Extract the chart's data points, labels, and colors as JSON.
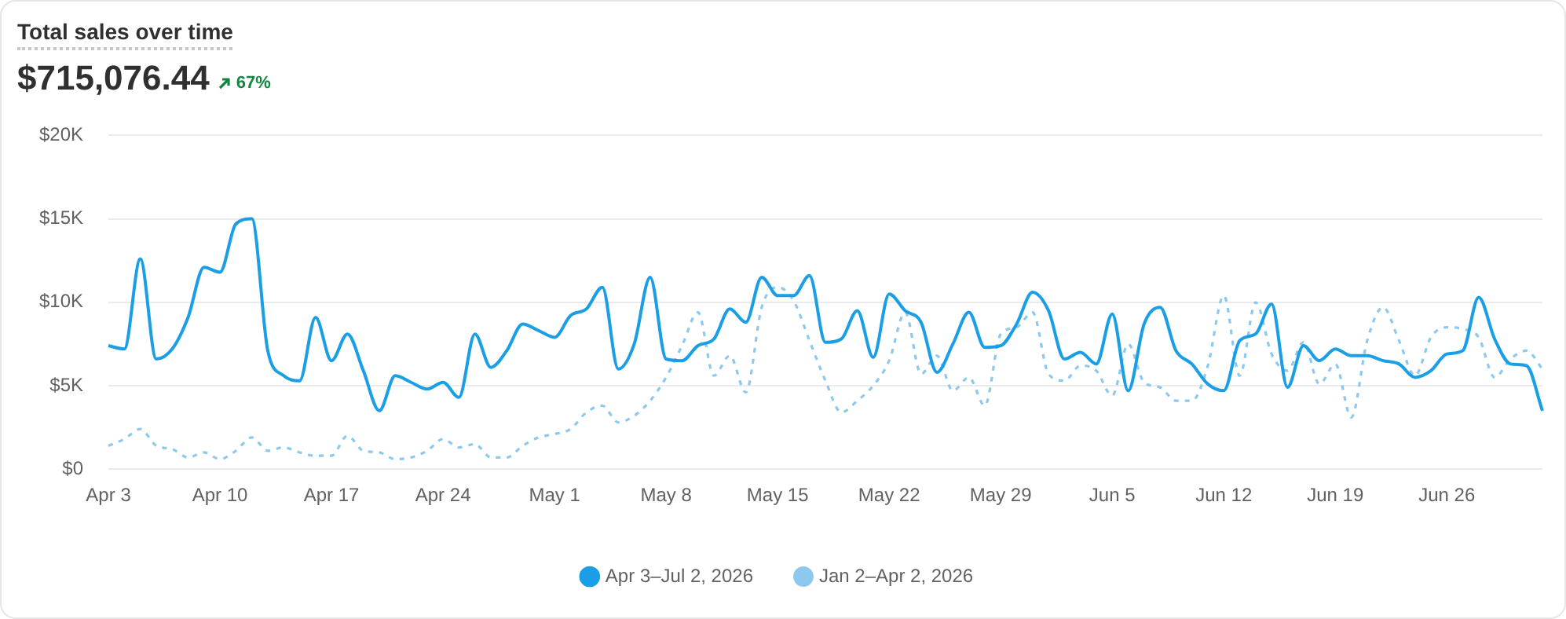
{
  "chart_data": {
    "type": "line",
    "title": "Total sales over time",
    "subtitle": "$715,076.44",
    "annotations": [
      "67%"
    ],
    "categories": [
      "Apr 3",
      null,
      null,
      null,
      null,
      null,
      null,
      "Apr 10",
      null,
      null,
      null,
      null,
      null,
      null,
      "Apr 17",
      null,
      null,
      null,
      null,
      null,
      null,
      "Apr 24",
      null,
      null,
      null,
      null,
      null,
      null,
      "May 1",
      null,
      null,
      null,
      null,
      null,
      null,
      "May 8",
      null,
      null,
      null,
      null,
      null,
      null,
      "May 15",
      null,
      null,
      null,
      null,
      null,
      null,
      "May 22",
      null,
      null,
      null,
      null,
      null,
      null,
      "May 29",
      null,
      null,
      null,
      null,
      null,
      null,
      "Jun 5",
      null,
      null,
      null,
      null,
      null,
      null,
      "Jun 12",
      null,
      null,
      null,
      null,
      null,
      null,
      "Jun 19",
      null,
      null,
      null,
      null,
      null,
      null,
      "Jun 26",
      null,
      null,
      null,
      null,
      null,
      null
    ],
    "series": [
      {
        "name": "Apr 3–Jul 2, 2026",
        "color": "#1a9fe6",
        "line_style": "solid",
        "values": [
          7.4,
          7.2,
          12.6,
          6.6,
          7.2,
          9.1,
          12.1,
          11.8,
          14.7,
          15.0,
          7.1,
          5.6,
          5.3,
          9.1,
          6.5,
          8.1,
          5.9,
          3.5,
          5.6,
          5.2,
          4.8,
          5.2,
          4.3,
          8.1,
          6.1,
          7.1,
          8.7,
          8.3,
          7.9,
          9.2,
          9.6,
          10.9,
          6.0,
          7.5,
          11.5,
          6.6,
          6.5,
          7.4,
          7.8,
          9.6,
          8.8,
          11.5,
          10.4,
          10.4,
          11.6,
          7.6,
          7.8,
          9.5,
          6.7,
          10.5,
          9.5,
          8.8,
          5.8,
          7.5,
          9.4,
          7.3,
          7.4,
          8.7,
          10.6,
          9.5,
          6.6,
          7.0,
          6.3,
          9.3,
          4.7,
          8.7,
          9.7,
          7.1,
          6.3,
          5.1,
          4.7,
          7.7,
          8.1,
          9.9,
          4.9,
          7.4,
          6.5,
          7.2,
          6.8,
          6.8,
          6.5,
          6.3,
          5.5,
          5.9,
          6.9,
          7.1,
          10.3,
          7.8,
          6.3,
          6.2,
          3.5
        ]
      },
      {
        "name": "Jan 2–Apr 2, 2026",
        "color": "#8dc8ef",
        "line_style": "dashed",
        "values": [
          1.4,
          1.8,
          2.4,
          1.4,
          1.2,
          0.7,
          1.0,
          0.6,
          1.1,
          1.9,
          1.1,
          1.3,
          1.0,
          0.8,
          0.8,
          2.0,
          1.1,
          1.0,
          0.6,
          0.7,
          1.1,
          1.8,
          1.3,
          1.5,
          0.7,
          0.7,
          1.4,
          1.9,
          2.1,
          2.4,
          3.4,
          3.8,
          2.8,
          3.2,
          4.1,
          5.5,
          7.4,
          9.4,
          5.6,
          6.8,
          4.6,
          9.7,
          10.9,
          10.1,
          7.7,
          5.3,
          3.4,
          4.1,
          5.0,
          6.5,
          9.4,
          5.7,
          6.8,
          4.7,
          5.5,
          3.8,
          8.1,
          8.5,
          9.4,
          5.7,
          5.3,
          6.2,
          5.9,
          4.4,
          7.5,
          5.2,
          4.9,
          4.1,
          4.1,
          6.2,
          10.4,
          5.6,
          10.0,
          6.9,
          5.9,
          7.6,
          5.1,
          6.3,
          3.1,
          7.7,
          9.7,
          7.7,
          5.6,
          7.9,
          8.5,
          8.4,
          7.9,
          5.5,
          6.6,
          7.1,
          6.0
        ]
      }
    ],
    "ylim": [
      0,
      20
    ],
    "yticks": [
      {
        "value": 0,
        "label": "$0"
      },
      {
        "value": 5,
        "label": "$5K"
      },
      {
        "value": 10,
        "label": "$10K"
      },
      {
        "value": 15,
        "label": "$15K"
      },
      {
        "value": 20,
        "label": "$20K"
      }
    ],
    "grid": "y",
    "legend": "bottom",
    "marker": "none"
  }
}
